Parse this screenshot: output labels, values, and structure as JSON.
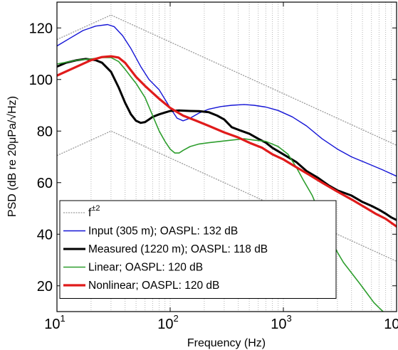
{
  "chart_data": {
    "type": "line",
    "title": "",
    "xlabel": "Frequency (Hz)",
    "ylabel": "PSD (dB re 20μPa/√Hz)",
    "xscale": "log",
    "xlim": [
      10,
      10000
    ],
    "ylim": [
      10,
      130
    ],
    "grid": {
      "x": "log-minor-dotted",
      "y": "off"
    },
    "legend_position": "bottom-left",
    "x_ticks": [
      {
        "value": 10,
        "base": "10",
        "exp": "1"
      },
      {
        "value": 100,
        "base": "10",
        "exp": "2"
      },
      {
        "value": 1000,
        "base": "10",
        "exp": "3"
      },
      {
        "value": 10000,
        "base": "10",
        "exp": "4"
      }
    ],
    "y_ticks": [
      20,
      40,
      60,
      80,
      100,
      120
    ],
    "series": [
      {
        "name": "Input (305 m); OASPL: 132 dB",
        "color": "#1414d6",
        "width": 1.4,
        "x": [
          10,
          13,
          17,
          22,
          28,
          32,
          38,
          45,
          55,
          65,
          80,
          100,
          115,
          130,
          150,
          180,
          220,
          280,
          350,
          450,
          550,
          700,
          900,
          1200,
          1600,
          2200,
          3000,
          4000,
          5500,
          7500,
          10000
        ],
        "y": [
          113,
          116,
          119,
          120.7,
          121.3,
          120.5,
          117,
          112,
          105,
          100,
          96,
          89,
          85,
          84,
          85,
          87,
          88.5,
          89.5,
          90,
          90.3,
          90,
          89.3,
          88,
          85.5,
          82,
          77,
          73,
          70,
          67.5,
          65,
          62.5
        ]
      },
      {
        "name": "Measured (1220 m); OASPL: 118 dB",
        "color": "#000000",
        "width": 3,
        "x": [
          10,
          12,
          15,
          18,
          22,
          25,
          30,
          35,
          40,
          45,
          50,
          55,
          60,
          65,
          70,
          80,
          90,
          100,
          120,
          150,
          180,
          220,
          260,
          300,
          350,
          400,
          500,
          600,
          700,
          800,
          1000,
          1300,
          1600,
          2000,
          2500,
          3000,
          4000,
          5000,
          6000,
          7000,
          8000,
          9000,
          10000
        ],
        "y": [
          105,
          106.5,
          107.5,
          108,
          107.5,
          106.5,
          103,
          97,
          91,
          86.5,
          84,
          83.2,
          83.5,
          84.5,
          85.5,
          86.5,
          87.2,
          87.8,
          88,
          87.8,
          87.7,
          87.3,
          86,
          84.5,
          81.5,
          80.5,
          79,
          77,
          75.5,
          73.5,
          71,
          68,
          64.5,
          62,
          59,
          57,
          55,
          52.5,
          51,
          49.5,
          48,
          46.5,
          45.5
        ]
      },
      {
        "name": "Linear; OASPL: 120 dB",
        "color": "#2e9e2e",
        "width": 1.6,
        "x": [
          10,
          15,
          20,
          25,
          30,
          35,
          40,
          45,
          50,
          60,
          70,
          80,
          90,
          100,
          110,
          120,
          130,
          150,
          180,
          220,
          280,
          350,
          450,
          550,
          700,
          900,
          1100,
          1300,
          1500,
          1800,
          2100,
          2400,
          2700,
          3000,
          3400,
          4000,
          4700,
          5500,
          6300,
          7000,
          7600
        ],
        "y": [
          106,
          107.5,
          108,
          108.5,
          108.5,
          107,
          104,
          101,
          98.5,
          93,
          86,
          80,
          76,
          73,
          71.5,
          71.5,
          72.5,
          74,
          75,
          75.5,
          76,
          76.5,
          77,
          76.5,
          76,
          74,
          71,
          66,
          61,
          55,
          48,
          43,
          37,
          33,
          29,
          25,
          21,
          17,
          13.5,
          11.5,
          10
        ]
      },
      {
        "name": "Nonlinear; OASPL: 120 dB",
        "color": "#e01b1b",
        "width": 3.2,
        "x": [
          10,
          15,
          20,
          25,
          30,
          35,
          40,
          50,
          60,
          80,
          100,
          130,
          170,
          220,
          300,
          400,
          500,
          650,
          800,
          1000,
          1300,
          1700,
          2200,
          3000,
          4000,
          5000,
          6500,
          8000,
          10000
        ],
        "y": [
          101.5,
          105,
          107.5,
          108.7,
          109,
          108.5,
          106.5,
          101,
          97.5,
          92.5,
          89,
          86,
          84,
          82,
          79.5,
          77.5,
          75.5,
          73.5,
          71,
          69,
          66,
          63,
          60,
          56.5,
          53.5,
          51,
          48,
          46,
          43
        ]
      }
    ],
    "reference_lines": {
      "legend_label": "f^{±2}",
      "label_base": "f",
      "label_exp": "±2",
      "color": "#9a9a9a",
      "peak_frequency": 30,
      "lines": [
        {
          "x": [
            10,
            30,
            10000
          ],
          "y": [
            115.5,
            125,
            74.5
          ]
        },
        {
          "x": [
            10,
            30,
            10000
          ],
          "y": [
            70.5,
            80,
            29.5
          ]
        }
      ]
    }
  }
}
